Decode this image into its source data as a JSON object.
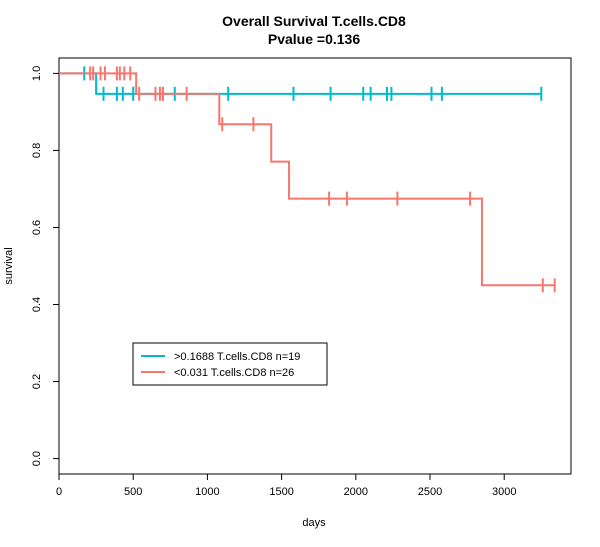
{
  "chart_data": {
    "type": "line",
    "title": "Overall Survival T.cells.CD8",
    "subtitle": "Pvalue =0.136",
    "xlabel": "days",
    "ylabel": "survival",
    "xlim": [
      0,
      3450
    ],
    "ylim": [
      -0.04,
      1.04
    ],
    "x_ticks": [
      0,
      500,
      1000,
      1500,
      2000,
      2500,
      3000
    ],
    "y_ticks": [
      0.0,
      0.2,
      0.4,
      0.6,
      0.8,
      1.0
    ],
    "x_tick_labels": [
      "0",
      "500",
      "1000",
      "1500",
      "2000",
      "2500",
      "3000"
    ],
    "y_tick_labels": [
      "0.0",
      "0.2",
      "0.4",
      "0.6",
      "0.8",
      "1.0"
    ],
    "legend_position": "bottom-left",
    "series": [
      {
        "name": ">0.1688 T.cells.CD8 n=19",
        "color": "#00BBCC",
        "steps": [
          [
            0,
            1.0
          ],
          [
            250,
            0.947
          ],
          [
            3250,
            0.947
          ]
        ],
        "censor": [
          [
            170,
            1.0
          ],
          [
            300,
            0.947
          ],
          [
            390,
            0.947
          ],
          [
            430,
            0.947
          ],
          [
            500,
            0.947
          ],
          [
            700,
            0.947
          ],
          [
            780,
            0.947
          ],
          [
            1140,
            0.947
          ],
          [
            1580,
            0.947
          ],
          [
            1830,
            0.947
          ],
          [
            2050,
            0.947
          ],
          [
            2100,
            0.947
          ],
          [
            2210,
            0.947
          ],
          [
            2240,
            0.947
          ],
          [
            2510,
            0.947
          ],
          [
            2580,
            0.947
          ],
          [
            3250,
            0.947
          ]
        ]
      },
      {
        "name": "<0.031 T.cells.CD8 n=26",
        "color": "#F8766D",
        "steps": [
          [
            0,
            1.0
          ],
          [
            520,
            1.0
          ],
          [
            520,
            0.947
          ],
          [
            1080,
            0.947
          ],
          [
            1080,
            0.868
          ],
          [
            1430,
            0.868
          ],
          [
            1430,
            0.771
          ],
          [
            1550,
            0.771
          ],
          [
            1550,
            0.675
          ],
          [
            2850,
            0.675
          ],
          [
            2850,
            0.45
          ],
          [
            3340,
            0.45
          ]
        ],
        "censor": [
          [
            210,
            1.0
          ],
          [
            230,
            1.0
          ],
          [
            280,
            1.0
          ],
          [
            310,
            1.0
          ],
          [
            390,
            1.0
          ],
          [
            410,
            1.0
          ],
          [
            440,
            1.0
          ],
          [
            480,
            1.0
          ],
          [
            540,
            0.947
          ],
          [
            650,
            0.947
          ],
          [
            680,
            0.947
          ],
          [
            700,
            0.947
          ],
          [
            860,
            0.947
          ],
          [
            1100,
            0.868
          ],
          [
            1310,
            0.868
          ],
          [
            1820,
            0.675
          ],
          [
            1940,
            0.675
          ],
          [
            2280,
            0.675
          ],
          [
            2770,
            0.675
          ],
          [
            3260,
            0.45
          ],
          [
            3340,
            0.45
          ]
        ]
      }
    ]
  }
}
